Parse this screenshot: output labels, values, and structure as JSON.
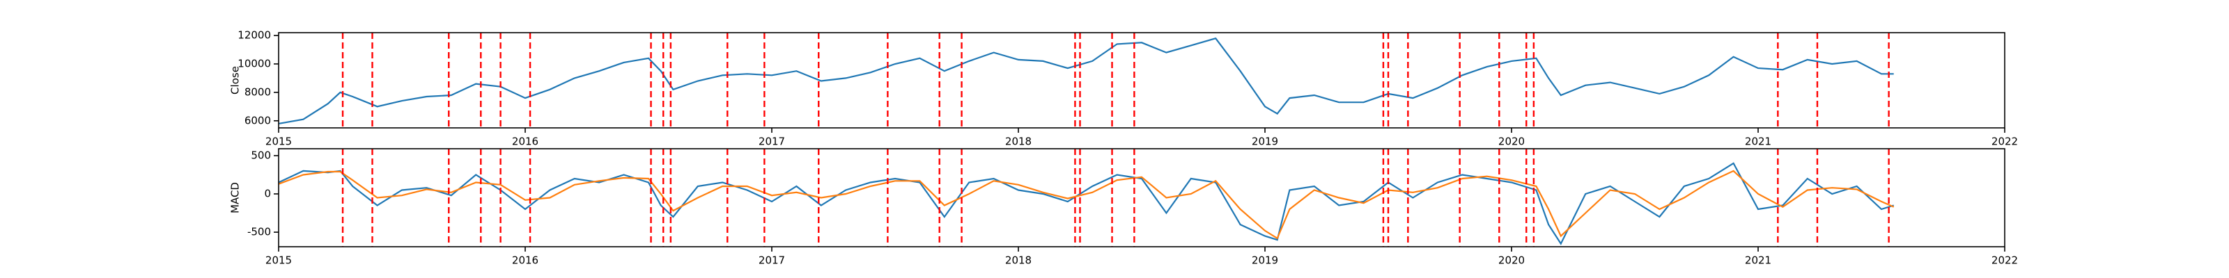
{
  "chart_data": [
    {
      "type": "line",
      "ylabel": "Close",
      "x": [
        2015.0,
        2015.1,
        2015.2,
        2015.25,
        2015.3,
        2015.4,
        2015.5,
        2015.6,
        2015.7,
        2015.8,
        2015.9,
        2016.0,
        2016.1,
        2016.2,
        2016.3,
        2016.4,
        2016.5,
        2016.55,
        2016.6,
        2016.7,
        2016.8,
        2016.9,
        2017.0,
        2017.1,
        2017.2,
        2017.3,
        2017.4,
        2017.5,
        2017.6,
        2017.7,
        2017.8,
        2017.9,
        2018.0,
        2018.1,
        2018.2,
        2018.3,
        2018.4,
        2018.5,
        2018.6,
        2018.7,
        2018.8,
        2018.9,
        2019.0,
        2019.05,
        2019.1,
        2019.2,
        2019.3,
        2019.4,
        2019.5,
        2019.6,
        2019.7,
        2019.8,
        2019.9,
        2020.0,
        2020.1,
        2020.15,
        2020.2,
        2020.3,
        2020.4,
        2020.5,
        2020.6,
        2020.7,
        2020.8,
        2020.9,
        2021.0,
        2021.1,
        2021.2,
        2021.3,
        2021.4,
        2021.5,
        2021.55
      ],
      "series": [
        {
          "color": "#1f77b4",
          "values": [
            5800,
            6100,
            7200,
            8000,
            7700,
            7000,
            7400,
            7700,
            7800,
            8600,
            8400,
            7600,
            8200,
            9000,
            9500,
            10100,
            10400,
            9500,
            8200,
            8800,
            9200,
            9300,
            9200,
            9500,
            8800,
            9000,
            9400,
            10000,
            10400,
            9500,
            10200,
            10800,
            10300,
            10200,
            9700,
            10200,
            11400,
            11500,
            10800,
            11300,
            11800,
            9500,
            7000,
            6500,
            7600,
            7800,
            7300,
            7300,
            7900,
            7600,
            8300,
            9200,
            9800,
            10200,
            10400,
            9000,
            7800,
            8500,
            8700,
            8300,
            7900,
            8400,
            9200,
            10500,
            9700,
            9600,
            10300,
            10000,
            10200,
            9300,
            9300
          ]
        }
      ],
      "vlines": {
        "color": "#ff0000",
        "x": [
          2015.26,
          2015.38,
          2015.69,
          2015.82,
          2015.9,
          2016.02,
          2016.51,
          2016.56,
          2016.59,
          2016.82,
          2016.97,
          2017.19,
          2017.47,
          2017.68,
          2017.77,
          2018.23,
          2018.25,
          2018.38,
          2018.47,
          2019.48,
          2019.5,
          2019.58,
          2019.79,
          2019.95,
          2020.06,
          2020.09,
          2021.08,
          2021.24,
          2021.53
        ]
      },
      "xlim": [
        2015,
        2022
      ],
      "xticks": [
        2015,
        2016,
        2017,
        2018,
        2019,
        2020,
        2021,
        2022
      ],
      "ylim": [
        5500,
        12200
      ],
      "yticks": [
        6000,
        8000,
        10000,
        12000
      ]
    },
    {
      "type": "line",
      "ylabel": "MACD",
      "x": [
        2015.0,
        2015.1,
        2015.2,
        2015.25,
        2015.3,
        2015.4,
        2015.5,
        2015.6,
        2015.7,
        2015.8,
        2015.9,
        2016.0,
        2016.1,
        2016.2,
        2016.3,
        2016.4,
        2016.5,
        2016.55,
        2016.6,
        2016.7,
        2016.8,
        2016.9,
        2017.0,
        2017.1,
        2017.2,
        2017.3,
        2017.4,
        2017.5,
        2017.6,
        2017.7,
        2017.8,
        2017.9,
        2018.0,
        2018.1,
        2018.2,
        2018.3,
        2018.4,
        2018.5,
        2018.6,
        2018.7,
        2018.8,
        2018.9,
        2019.0,
        2019.05,
        2019.1,
        2019.2,
        2019.3,
        2019.4,
        2019.5,
        2019.6,
        2019.7,
        2019.8,
        2019.9,
        2020.0,
        2020.1,
        2020.15,
        2020.2,
        2020.3,
        2020.4,
        2020.5,
        2020.6,
        2020.7,
        2020.8,
        2020.9,
        2021.0,
        2021.1,
        2021.2,
        2021.3,
        2021.4,
        2021.5,
        2021.55
      ],
      "series": [
        {
          "color": "#1f77b4",
          "values": [
            150,
            300,
            280,
            300,
            100,
            -150,
            50,
            80,
            -20,
            250,
            50,
            -200,
            50,
            200,
            150,
            250,
            150,
            -150,
            -300,
            100,
            150,
            50,
            -100,
            100,
            -150,
            50,
            150,
            200,
            150,
            -300,
            150,
            200,
            50,
            0,
            -100,
            100,
            250,
            200,
            -250,
            200,
            150,
            -400,
            -550,
            -600,
            50,
            100,
            -150,
            -100,
            150,
            -50,
            150,
            250,
            200,
            150,
            50,
            -400,
            -650,
            0,
            100,
            -100,
            -300,
            100,
            200,
            400,
            -200,
            -150,
            200,
            0,
            100,
            -200,
            -150
          ]
        },
        {
          "color": "#ff7f0e",
          "values": [
            130,
            250,
            290,
            290,
            180,
            -50,
            -20,
            60,
            20,
            150,
            120,
            -80,
            -50,
            120,
            170,
            210,
            200,
            0,
            -220,
            -50,
            100,
            100,
            -20,
            20,
            -50,
            0,
            100,
            170,
            170,
            -150,
            0,
            170,
            120,
            20,
            -60,
            20,
            180,
            220,
            -50,
            0,
            170,
            -200,
            -480,
            -580,
            -200,
            50,
            -50,
            -120,
            50,
            20,
            80,
            200,
            230,
            180,
            100,
            -200,
            -550,
            -250,
            50,
            0,
            -200,
            -50,
            150,
            300,
            0,
            -170,
            50,
            80,
            60,
            -100,
            -170
          ]
        }
      ],
      "vlines": {
        "color": "#ff0000",
        "x": [
          2015.26,
          2015.38,
          2015.69,
          2015.82,
          2015.9,
          2016.02,
          2016.51,
          2016.56,
          2016.59,
          2016.82,
          2016.97,
          2017.19,
          2017.47,
          2017.68,
          2017.77,
          2018.23,
          2018.25,
          2018.38,
          2018.47,
          2019.48,
          2019.5,
          2019.58,
          2019.79,
          2019.95,
          2020.06,
          2020.09,
          2021.08,
          2021.24,
          2021.53
        ]
      },
      "xlim": [
        2015,
        2022
      ],
      "xticks": [
        2015,
        2016,
        2017,
        2018,
        2019,
        2020,
        2021,
        2022
      ],
      "ylim": [
        -690,
        590
      ],
      "yticks": [
        -500,
        0,
        500
      ]
    }
  ]
}
